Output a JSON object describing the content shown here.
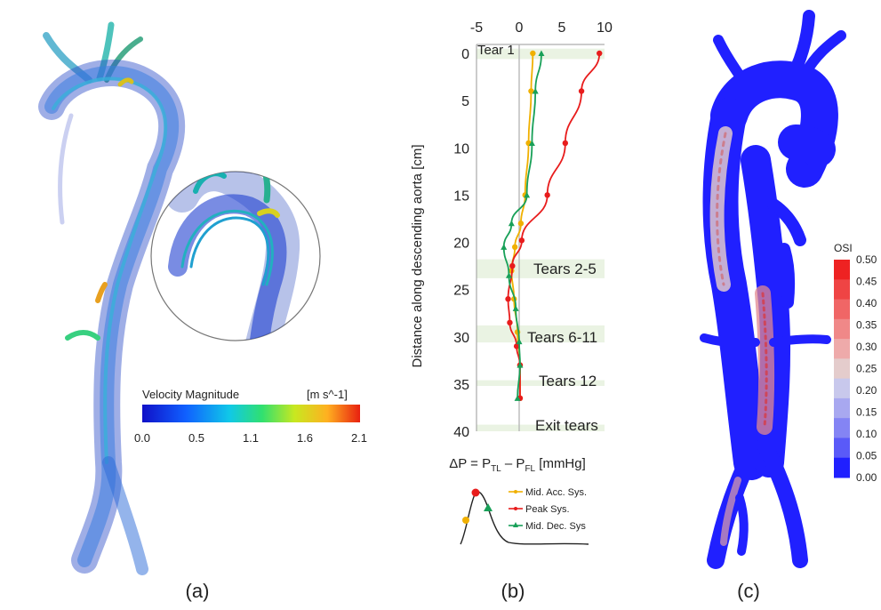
{
  "panel_labels": {
    "a": "(a)",
    "b": "(b)",
    "c": "(c)"
  },
  "panel_a": {
    "colorbar": {
      "title": "Velocity Magnitude",
      "unit": "[m s^-1]",
      "ticks": [
        "0.0",
        "0.5",
        "1.1",
        "1.6",
        "2.1"
      ],
      "colors": [
        "#1010c8",
        "#1060ff",
        "#10c8e8",
        "#30e070",
        "#c8e820",
        "#ffb020",
        "#e82010"
      ]
    }
  },
  "panel_c": {
    "colorbar": {
      "title": "OSI",
      "ticks": [
        "0.50",
        "0.45",
        "0.40",
        "0.35",
        "0.30",
        "0.25",
        "0.20",
        "0.15",
        "0.10",
        "0.05",
        "0.00"
      ],
      "colors": [
        "#ee2222",
        "#ef4444",
        "#f06666",
        "#f08888",
        "#eeaaaa",
        "#e4cccc",
        "#c8c8ec",
        "#a8a8f0",
        "#8484f4",
        "#5a5af8",
        "#2020ff"
      ]
    }
  },
  "chart_data": {
    "type": "line",
    "title": "",
    "xlabel": "ΔP = P_TL – P_FL [mmHg]",
    "xlabel_parts": {
      "a": "ΔP = P",
      "b": "TL",
      "c": " – P",
      "d": "FL",
      "e": " [mmHg]"
    },
    "ylabel": "Distance along descending aorta  [cm]",
    "xlim": [
      -5,
      10
    ],
    "ylim": [
      0,
      40
    ],
    "y_inverted": true,
    "x_ticks": [
      "-5",
      "0",
      "5",
      "10"
    ],
    "y_ticks": [
      "0",
      "5",
      "10",
      "15",
      "20",
      "25",
      "30",
      "35",
      "40"
    ],
    "bands": [
      {
        "label": "Tear 1",
        "y": [
          -0.5,
          0.6
        ]
      },
      {
        "label": "Tears 2-5",
        "y": [
          21.8,
          23.8
        ]
      },
      {
        "label": "Tears 6-11",
        "y": [
          28.8,
          30.6
        ]
      },
      {
        "label": "Tears 12",
        "y": [
          34.6,
          35.2
        ]
      },
      {
        "label": "Exit tears",
        "y": [
          39.3,
          40
        ]
      }
    ],
    "series": [
      {
        "name": "Mid. Acc. Sys.",
        "color": "#f0b000",
        "x": [
          1.6,
          1.4,
          1.1,
          0.7,
          0.2,
          -0.5,
          -0.9,
          -0.6,
          -0.2,
          0.1,
          0.1
        ],
        "y": [
          0,
          4,
          9.5,
          15,
          18,
          20.5,
          23,
          26,
          29.5,
          33,
          36.5
        ]
      },
      {
        "name": "Peak Sys.",
        "color": "#e81c1c",
        "x": [
          9.4,
          7.3,
          5.4,
          3.3,
          0.3,
          -0.8,
          -1.3,
          -1.1,
          -0.3,
          0.1,
          0.1
        ],
        "y": [
          0,
          4,
          9.5,
          15,
          19.8,
          22.5,
          26,
          28.5,
          31,
          33,
          36.5
        ]
      },
      {
        "name": "Mid. Dec. Sys",
        "color": "#18a058",
        "x": [
          2.6,
          1.9,
          1.5,
          0.9,
          -0.9,
          -1.8,
          -1.2,
          -0.4,
          0.0,
          0.1,
          -0.2
        ],
        "y": [
          0,
          4,
          9.5,
          15,
          18,
          20.5,
          23.5,
          27,
          30.5,
          33,
          36.5
        ]
      }
    ],
    "legend": {
      "placement": "bottom",
      "labels": [
        "Mid. Acc. Sys.",
        "Peak Sys.",
        "Mid. Dec. Sys"
      ]
    }
  }
}
